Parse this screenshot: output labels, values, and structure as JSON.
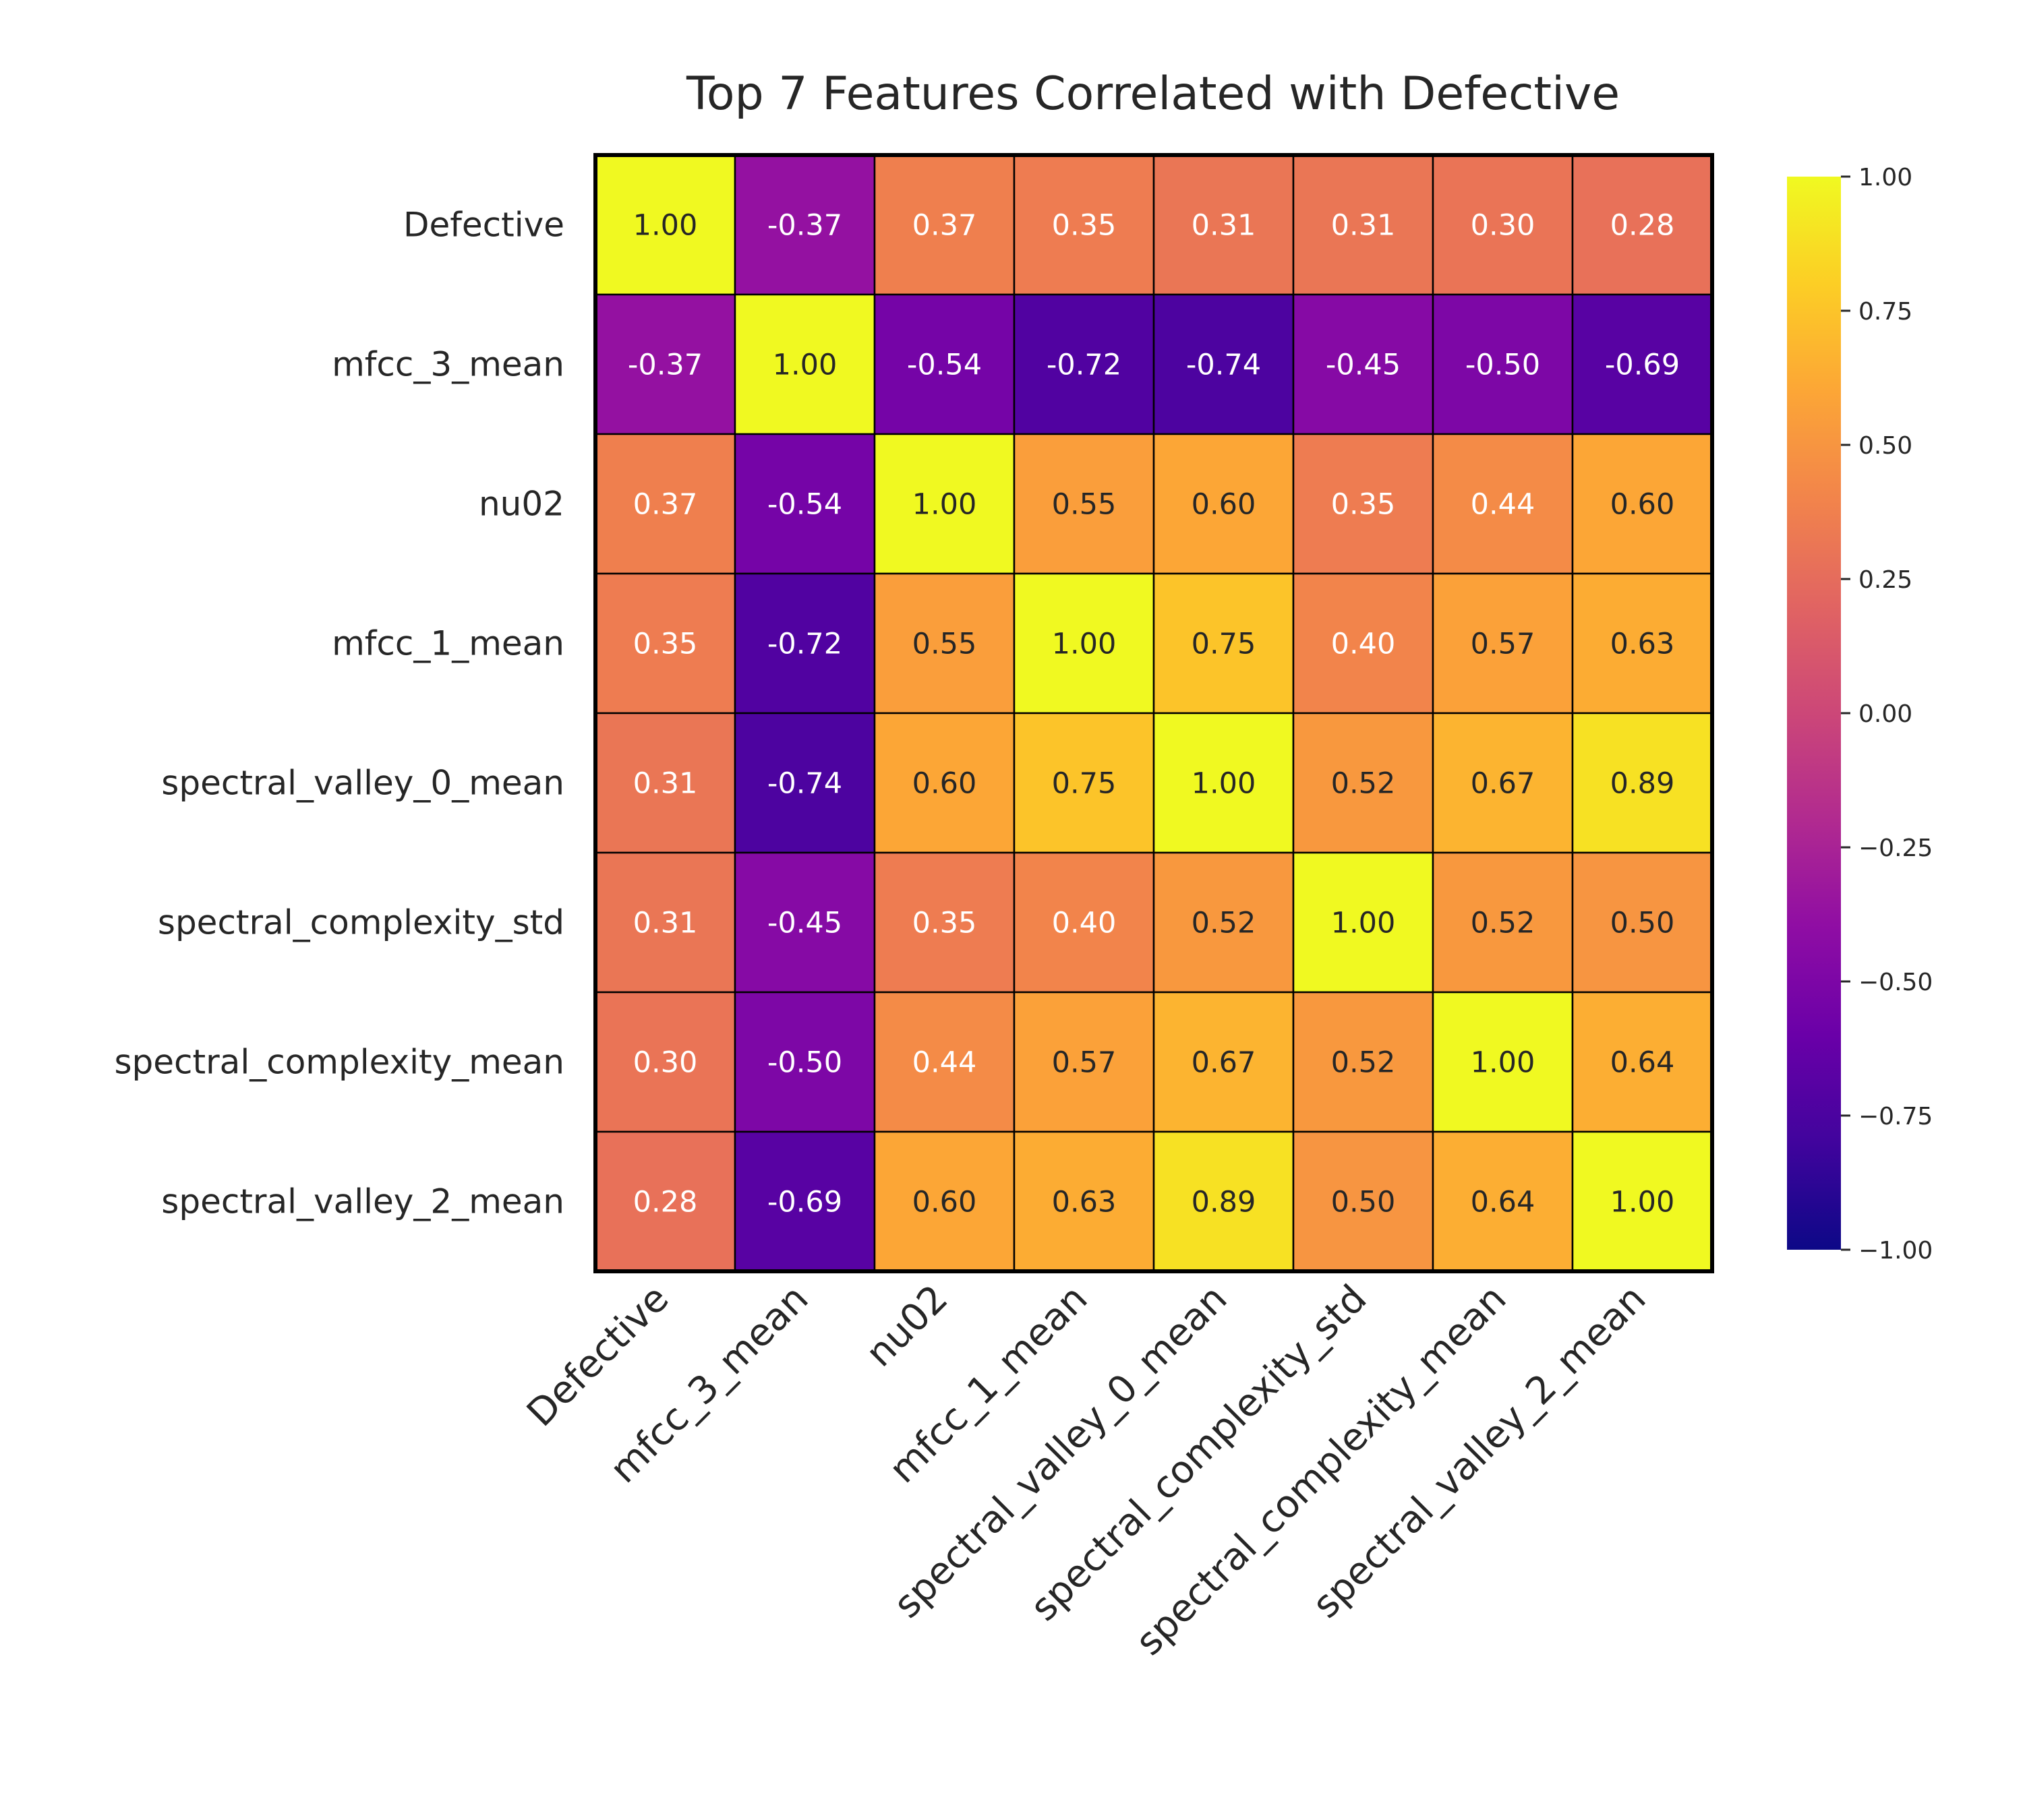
{
  "chart_data": {
    "type": "heatmap",
    "title": "Top 7 Features Correlated with Defective",
    "rows": [
      "Defective",
      "mfcc_3_mean",
      "nu02",
      "mfcc_1_mean",
      "spectral_valley_0_mean",
      "spectral_complexity_std",
      "spectral_complexity_mean",
      "spectral_valley_2_mean"
    ],
    "columns": [
      "Defective",
      "mfcc_3_mean",
      "nu02",
      "mfcc_1_mean",
      "spectral_valley_0_mean",
      "spectral_complexity_std",
      "spectral_complexity_mean",
      "spectral_valley_2_mean"
    ],
    "values": [
      [
        1.0,
        -0.37,
        0.37,
        0.35,
        0.31,
        0.31,
        0.3,
        0.28
      ],
      [
        -0.37,
        1.0,
        -0.54,
        -0.72,
        -0.74,
        -0.45,
        -0.5,
        -0.69
      ],
      [
        0.37,
        -0.54,
        1.0,
        0.55,
        0.6,
        0.35,
        0.44,
        0.6
      ],
      [
        0.35,
        -0.72,
        0.55,
        1.0,
        0.75,
        0.4,
        0.57,
        0.63
      ],
      [
        0.31,
        -0.74,
        0.6,
        0.75,
        1.0,
        0.52,
        0.67,
        0.89
      ],
      [
        0.31,
        -0.45,
        0.35,
        0.4,
        0.52,
        1.0,
        0.52,
        0.5
      ],
      [
        0.3,
        -0.5,
        0.44,
        0.57,
        0.67,
        0.52,
        1.0,
        0.64
      ],
      [
        0.28,
        -0.69,
        0.6,
        0.63,
        0.89,
        0.5,
        0.64,
        1.0
      ]
    ],
    "value_format": "0.00",
    "colormap": "plasma",
    "vmin": -1.0,
    "vmax": 1.0,
    "colorbar_ticks": [
      "1.00",
      "0.75",
      "0.50",
      "0.25",
      "0.00",
      "−0.25",
      "−0.50",
      "−0.75",
      "−1.00"
    ],
    "colorbar_tick_values": [
      1.0,
      0.75,
      0.5,
      0.25,
      0.0,
      -0.25,
      -0.5,
      -0.75,
      -1.0
    ],
    "colorbar_position": "right",
    "grid": false
  }
}
